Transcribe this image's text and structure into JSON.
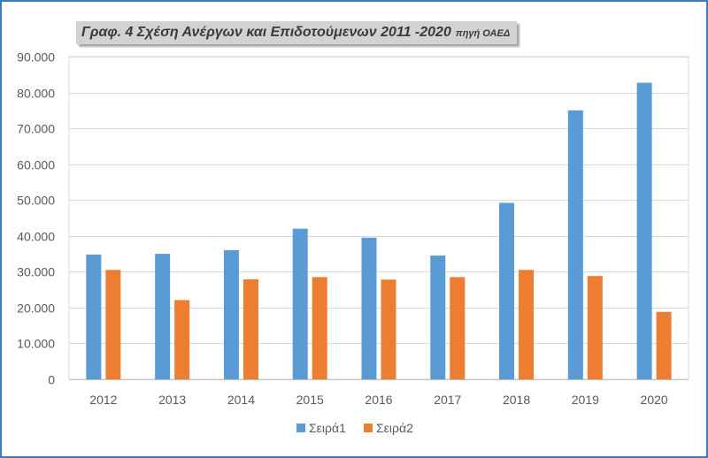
{
  "chart_data": {
    "type": "bar",
    "title": "Γραφ. 4 Σχέση Ανέργων και Επιδοτούμενων 2011 -2020",
    "subtitle": "πηγή ΟΑΕΔ",
    "xlabel": "",
    "ylabel": "",
    "ylim": [
      0,
      90000
    ],
    "yticks": [
      "0",
      "10.000",
      "20.000",
      "30.000",
      "40.000",
      "50.000",
      "60.000",
      "70.000",
      "80.000",
      "90.000"
    ],
    "categories": [
      "2012",
      "2013",
      "2014",
      "2015",
      "2016",
      "2017",
      "2018",
      "2019",
      "2020"
    ],
    "series": [
      {
        "name": "Σειρά1",
        "color": "#5b9bd5",
        "values": [
          34800,
          35000,
          36000,
          42000,
          39500,
          34500,
          49200,
          75000,
          82700
        ]
      },
      {
        "name": "Σειρά2",
        "color": "#ed7d31",
        "values": [
          30500,
          22100,
          27900,
          28500,
          27800,
          28500,
          30500,
          28800,
          18800
        ]
      }
    ],
    "grid": true,
    "legend_position": "bottom"
  }
}
